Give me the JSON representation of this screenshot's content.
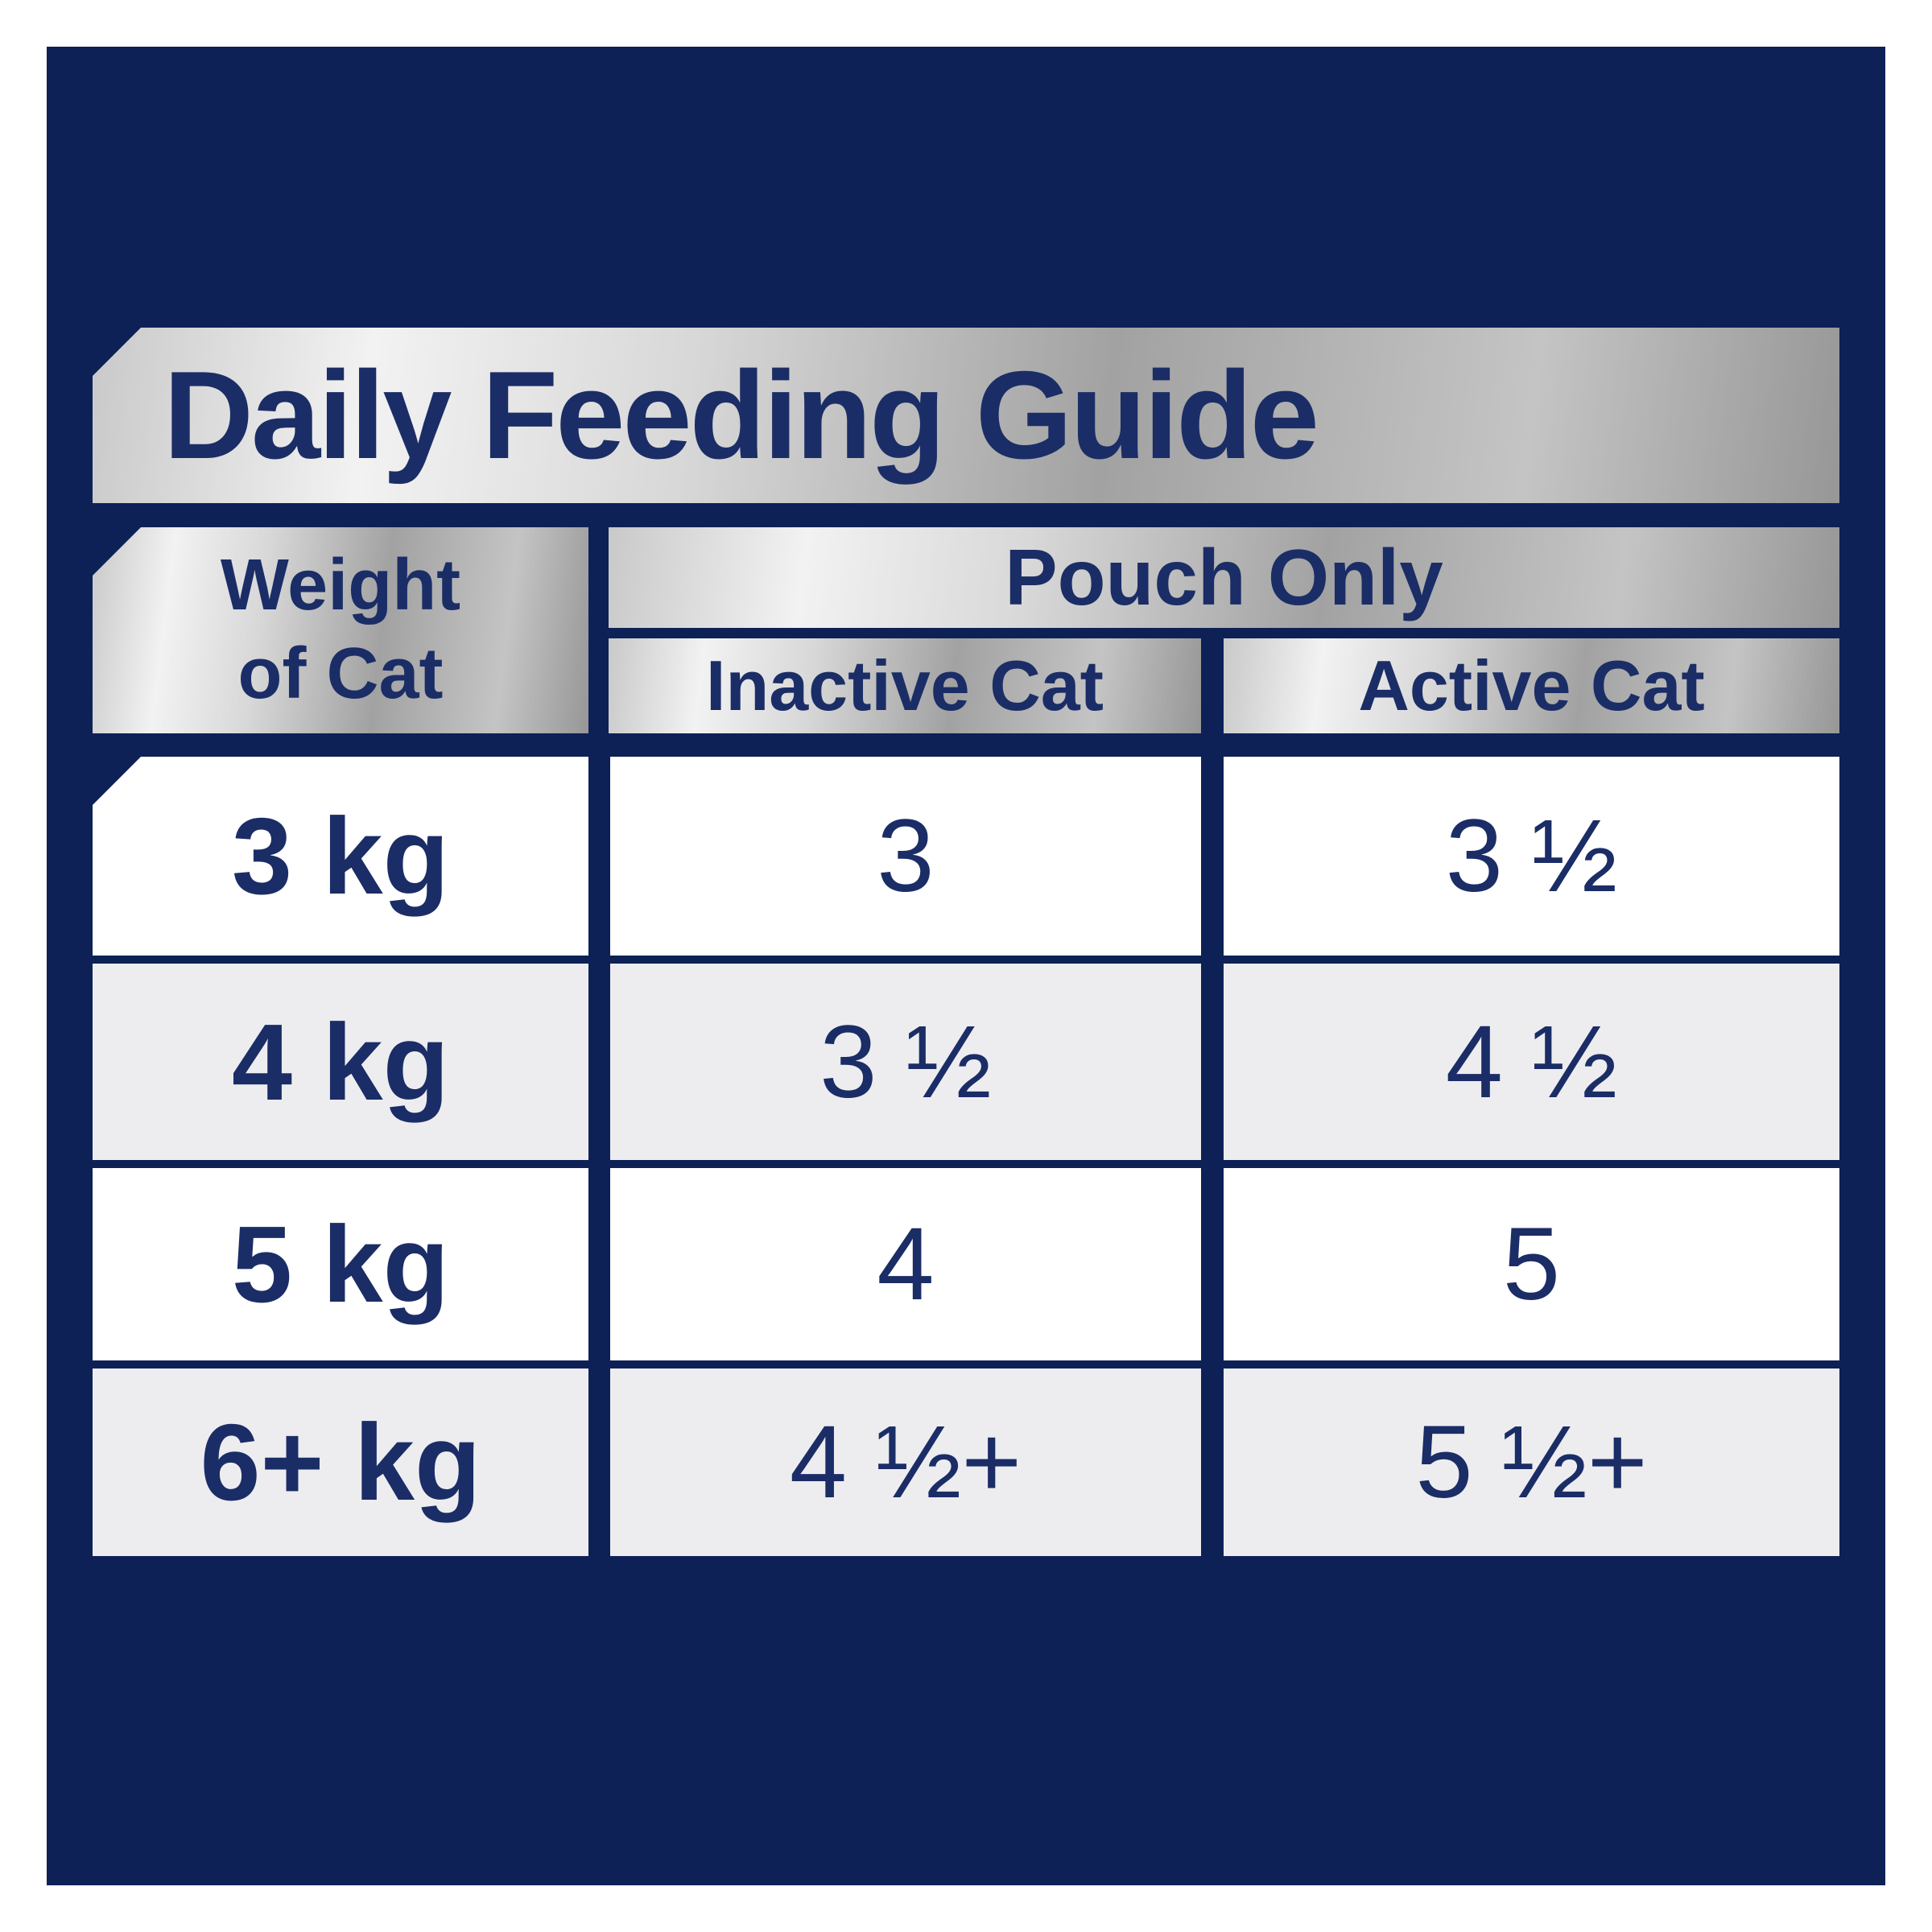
{
  "title": "Daily Feeding Guide",
  "colors": {
    "panel_navy": "#0d2156",
    "text_navy": "#1b2d66",
    "row_white": "#ffffff",
    "row_grey": "#ededf0",
    "metal_light": "#f2f2f2",
    "metal_dark": "#979797"
  },
  "chart_data": {
    "type": "table",
    "title": "Daily Feeding Guide",
    "weight_header": {
      "line1": "Weight",
      "line2": "of Cat"
    },
    "group_header": "Pouch Only",
    "sub_headers": [
      "Inactive Cat",
      "Active Cat"
    ],
    "rows": [
      {
        "weight": "3 kg",
        "inactive": "3",
        "active": "3 ½"
      },
      {
        "weight": "4 kg",
        "inactive": "3 ½",
        "active": "4 ½"
      },
      {
        "weight": "5 kg",
        "inactive": "4",
        "active": "5"
      },
      {
        "weight": "6+ kg",
        "inactive": "4 ½+",
        "active": "5 ½+"
      }
    ],
    "rows_numeric": [
      {
        "weight_kg": 3,
        "inactive_pouches": 3,
        "active_pouches": 3.5
      },
      {
        "weight_kg": 4,
        "inactive_pouches": 3.5,
        "active_pouches": 4.5
      },
      {
        "weight_kg": 5,
        "inactive_pouches": 4,
        "active_pouches": 5
      },
      {
        "weight_kg": 6,
        "inactive_pouches": 4.5,
        "active_pouches": 5.5
      }
    ],
    "units": "pouches per day",
    "layout": "weight column on left; Pouch Only group spans Inactive Cat and Active Cat columns; alternating white/grey rows on navy background"
  }
}
